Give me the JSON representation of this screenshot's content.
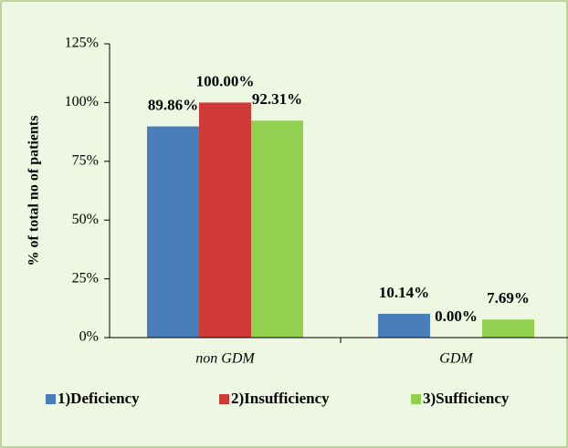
{
  "chart_data": {
    "type": "bar",
    "y_label": "% of total no of patients",
    "categories": [
      "non GDM",
      "GDM"
    ],
    "series": [
      {
        "name": "1)Deficiency",
        "color": "#4a7ebb",
        "values": [
          89.86,
          10.14
        ],
        "value_labels": [
          "89.86%",
          "10.14%"
        ]
      },
      {
        "name": "2)Insufficiency",
        "color": "#d03a36",
        "values": [
          100.0,
          0.0
        ],
        "value_labels": [
          "100.00%",
          "0.00%"
        ]
      },
      {
        "name": "3)Sufficiency",
        "color": "#92d050",
        "values": [
          92.31,
          7.69
        ],
        "value_labels": [
          "92.31%",
          "7.69%"
        ]
      }
    ],
    "ylim": [
      0,
      125
    ],
    "yticks": [
      {
        "value": 0,
        "label": "0%"
      },
      {
        "value": 25,
        "label": "25%"
      },
      {
        "value": 50,
        "label": "50%"
      },
      {
        "value": 75,
        "label": "75%"
      },
      {
        "value": 100,
        "label": "100%"
      },
      {
        "value": 125,
        "label": "125%"
      }
    ],
    "legend": "bottom"
  }
}
